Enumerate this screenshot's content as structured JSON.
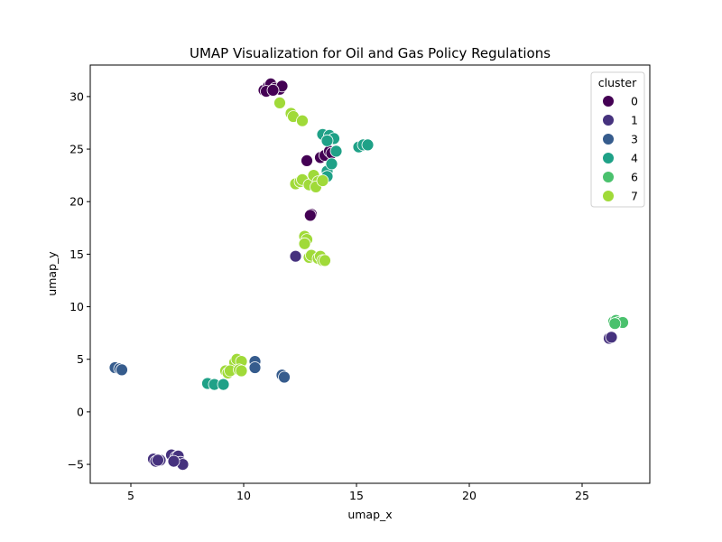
{
  "chart_data": {
    "type": "scatter",
    "title": "UMAP Visualization for Oil and Gas Policy Regulations",
    "xlabel": "umap_x",
    "ylabel": "umap_y",
    "xlim": [
      3.2,
      28.0
    ],
    "ylim": [
      -6.8,
      33.0
    ],
    "xticks": [
      5,
      10,
      15,
      20,
      25
    ],
    "yticks": [
      -5,
      0,
      5,
      10,
      15,
      20,
      25,
      30
    ],
    "grid": false,
    "legend": {
      "title": "cluster",
      "placement": "top-right",
      "entries": [
        {
          "label": "0",
          "color": "#440154"
        },
        {
          "label": "1",
          "color": "#46327e"
        },
        {
          "label": "3",
          "color": "#365c8d"
        },
        {
          "label": "4",
          "color": "#1fa187"
        },
        {
          "label": "6",
          "color": "#4ac16d"
        },
        {
          "label": "7",
          "color": "#a0da39"
        }
      ]
    },
    "series": [
      {
        "name": "0",
        "color": "#440154",
        "points": [
          [
            10.9,
            30.6
          ],
          [
            11.1,
            31.0
          ],
          [
            11.2,
            31.2
          ],
          [
            11.4,
            30.8
          ],
          [
            11.6,
            30.7
          ],
          [
            11.7,
            31.0
          ],
          [
            11.0,
            30.5
          ],
          [
            11.3,
            30.6
          ],
          [
            12.8,
            23.9
          ],
          [
            13.4,
            24.2
          ],
          [
            13.6,
            24.4
          ],
          [
            13.8,
            24.8
          ],
          [
            13.9,
            24.6
          ],
          [
            13.0,
            18.8
          ],
          [
            12.95,
            18.7
          ]
        ]
      },
      {
        "name": "1",
        "color": "#46327e",
        "points": [
          [
            12.3,
            14.8
          ],
          [
            26.2,
            7.0
          ],
          [
            26.3,
            7.1
          ],
          [
            6.0,
            -4.5
          ],
          [
            6.1,
            -4.7
          ],
          [
            6.3,
            -4.6
          ],
          [
            6.8,
            -4.1
          ],
          [
            7.0,
            -4.3
          ],
          [
            7.1,
            -4.2
          ],
          [
            7.2,
            -4.8
          ],
          [
            7.3,
            -5.0
          ],
          [
            6.9,
            -4.7
          ],
          [
            6.2,
            -4.6
          ]
        ]
      },
      {
        "name": "3",
        "color": "#365c8d",
        "points": [
          [
            4.3,
            4.2
          ],
          [
            4.5,
            4.1
          ],
          [
            4.6,
            4.0
          ],
          [
            10.5,
            4.8
          ],
          [
            10.5,
            4.2
          ],
          [
            11.7,
            3.5
          ],
          [
            11.8,
            3.3
          ]
        ]
      },
      {
        "name": "4",
        "color": "#1fa187",
        "points": [
          [
            13.5,
            26.4
          ],
          [
            13.8,
            26.3
          ],
          [
            14.0,
            26.0
          ],
          [
            13.7,
            25.8
          ],
          [
            14.1,
            24.8
          ],
          [
            15.1,
            25.2
          ],
          [
            15.3,
            25.4
          ],
          [
            15.5,
            25.4
          ],
          [
            13.7,
            22.9
          ],
          [
            13.9,
            23.6
          ],
          [
            13.7,
            22.4
          ],
          [
            8.4,
            2.7
          ],
          [
            8.7,
            2.6
          ],
          [
            9.1,
            2.6
          ]
        ]
      },
      {
        "name": "6",
        "color": "#4ac16d",
        "points": [
          [
            26.4,
            8.6
          ],
          [
            26.5,
            8.7
          ],
          [
            26.6,
            8.5
          ],
          [
            26.8,
            8.5
          ],
          [
            26.45,
            8.4
          ]
        ]
      },
      {
        "name": "7",
        "color": "#a0da39",
        "points": [
          [
            11.6,
            29.4
          ],
          [
            12.1,
            28.4
          ],
          [
            12.2,
            28.1
          ],
          [
            12.6,
            27.7
          ],
          [
            12.3,
            21.7
          ],
          [
            12.5,
            21.9
          ],
          [
            12.6,
            22.1
          ],
          [
            12.9,
            21.6
          ],
          [
            13.1,
            22.5
          ],
          [
            13.3,
            21.9
          ],
          [
            13.2,
            21.4
          ],
          [
            13.5,
            22.0
          ],
          [
            12.7,
            16.7
          ],
          [
            12.8,
            16.4
          ],
          [
            12.7,
            16.0
          ],
          [
            12.9,
            14.7
          ],
          [
            13.0,
            14.9
          ],
          [
            13.3,
            14.6
          ],
          [
            13.4,
            14.8
          ],
          [
            13.5,
            14.4
          ],
          [
            13.6,
            14.4
          ],
          [
            9.6,
            4.7
          ],
          [
            9.7,
            5.0
          ],
          [
            9.9,
            4.8
          ],
          [
            9.2,
            3.9
          ],
          [
            9.3,
            3.7
          ],
          [
            9.4,
            3.9
          ],
          [
            9.8,
            4.0
          ],
          [
            9.9,
            3.9
          ]
        ]
      }
    ]
  }
}
